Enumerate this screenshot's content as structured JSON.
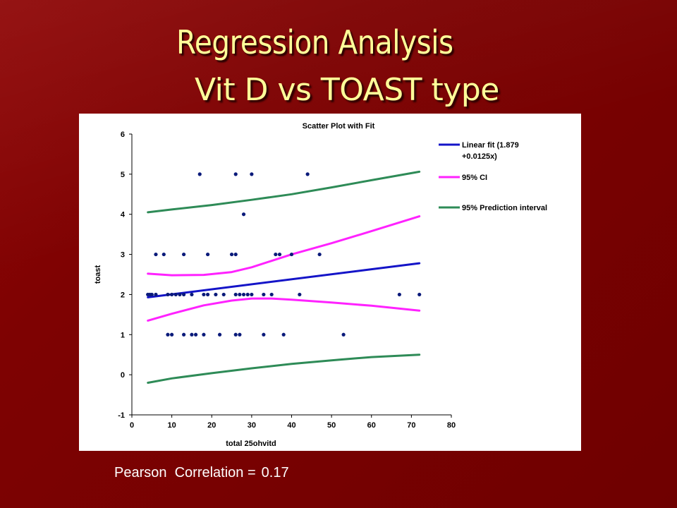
{
  "slide": {
    "title": "Regression Analysis",
    "subtitle": "Vit D vs TOAST type",
    "footer_label": "Pearson  Correlation =",
    "footer_value": "0.17"
  },
  "colors": {
    "background": "#7e0202",
    "title": "#ffff99",
    "fit_line": "#1414c8",
    "ci": "#ff22ff",
    "prediction": "#2e8b57",
    "points": "#0a1a7a"
  },
  "chart_data": {
    "type": "scatter",
    "title": "Scatter Plot with Fit",
    "xlabel": "total 25ohvitd",
    "ylabel": "toast",
    "xlim": [
      0,
      80
    ],
    "ylim": [
      -1,
      6
    ],
    "x_ticks": [
      0,
      10,
      20,
      30,
      40,
      50,
      60,
      70,
      80
    ],
    "y_ticks": [
      -1,
      0,
      1,
      2,
      3,
      4,
      5,
      6
    ],
    "grid": false,
    "legend_position": "right",
    "legend": [
      {
        "label_line1": "Linear fit (1.879",
        "label_line2": "+0.0125x)",
        "color": "#1414c8"
      },
      {
        "label_line1": "95% CI",
        "label_line2": "",
        "color": "#ff22ff"
      },
      {
        "label_line1": "95% Prediction interval",
        "label_line2": "",
        "color": "#2e8b57"
      }
    ],
    "points": [
      {
        "x": 4,
        "y": 2
      },
      {
        "x": 4.5,
        "y": 2
      },
      {
        "x": 5,
        "y": 2
      },
      {
        "x": 6,
        "y": 2
      },
      {
        "x": 9,
        "y": 2
      },
      {
        "x": 10,
        "y": 2
      },
      {
        "x": 11,
        "y": 2
      },
      {
        "x": 12,
        "y": 2
      },
      {
        "x": 13,
        "y": 2
      },
      {
        "x": 15,
        "y": 2
      },
      {
        "x": 18,
        "y": 2
      },
      {
        "x": 19,
        "y": 2
      },
      {
        "x": 21,
        "y": 2
      },
      {
        "x": 23,
        "y": 2
      },
      {
        "x": 26,
        "y": 2
      },
      {
        "x": 27,
        "y": 2
      },
      {
        "x": 28,
        "y": 2
      },
      {
        "x": 29,
        "y": 2
      },
      {
        "x": 30,
        "y": 2
      },
      {
        "x": 33,
        "y": 2
      },
      {
        "x": 35,
        "y": 2
      },
      {
        "x": 42,
        "y": 2
      },
      {
        "x": 67,
        "y": 2
      },
      {
        "x": 72,
        "y": 2
      },
      {
        "x": 9,
        "y": 1
      },
      {
        "x": 10,
        "y": 1
      },
      {
        "x": 13,
        "y": 1
      },
      {
        "x": 15,
        "y": 1
      },
      {
        "x": 16,
        "y": 1
      },
      {
        "x": 18,
        "y": 1
      },
      {
        "x": 22,
        "y": 1
      },
      {
        "x": 26,
        "y": 1
      },
      {
        "x": 27,
        "y": 1
      },
      {
        "x": 33,
        "y": 1
      },
      {
        "x": 38,
        "y": 1
      },
      {
        "x": 53,
        "y": 1
      },
      {
        "x": 6,
        "y": 3
      },
      {
        "x": 8,
        "y": 3
      },
      {
        "x": 13,
        "y": 3
      },
      {
        "x": 19,
        "y": 3
      },
      {
        "x": 25,
        "y": 3
      },
      {
        "x": 26,
        "y": 3
      },
      {
        "x": 36,
        "y": 3
      },
      {
        "x": 37,
        "y": 3
      },
      {
        "x": 40,
        "y": 3
      },
      {
        "x": 47,
        "y": 3
      },
      {
        "x": 28,
        "y": 4
      },
      {
        "x": 17,
        "y": 5
      },
      {
        "x": 26,
        "y": 5
      },
      {
        "x": 30,
        "y": 5
      },
      {
        "x": 44,
        "y": 5
      }
    ],
    "series": [
      {
        "role": "fit",
        "x": [
          4,
          72
        ],
        "values": [
          1.93,
          2.78
        ]
      },
      {
        "role": "ci_upper",
        "x": [
          4,
          10,
          18,
          25,
          30,
          35,
          40,
          50,
          60,
          72
        ],
        "values": [
          2.52,
          2.48,
          2.49,
          2.56,
          2.68,
          2.84,
          3.0,
          3.28,
          3.58,
          3.95
        ]
      },
      {
        "role": "ci_lower",
        "x": [
          4,
          10,
          18,
          25,
          30,
          35,
          40,
          50,
          60,
          72
        ],
        "values": [
          1.35,
          1.52,
          1.73,
          1.85,
          1.9,
          1.9,
          1.87,
          1.8,
          1.72,
          1.6
        ]
      },
      {
        "role": "pi_upper",
        "x": [
          4,
          10,
          20,
          30,
          40,
          50,
          60,
          72
        ],
        "values": [
          4.05,
          4.12,
          4.23,
          4.36,
          4.5,
          4.67,
          4.85,
          5.06
        ]
      },
      {
        "role": "pi_lower",
        "x": [
          4,
          10,
          20,
          30,
          40,
          50,
          60,
          72
        ],
        "values": [
          -0.2,
          -0.09,
          0.04,
          0.16,
          0.27,
          0.36,
          0.44,
          0.5
        ]
      }
    ]
  }
}
